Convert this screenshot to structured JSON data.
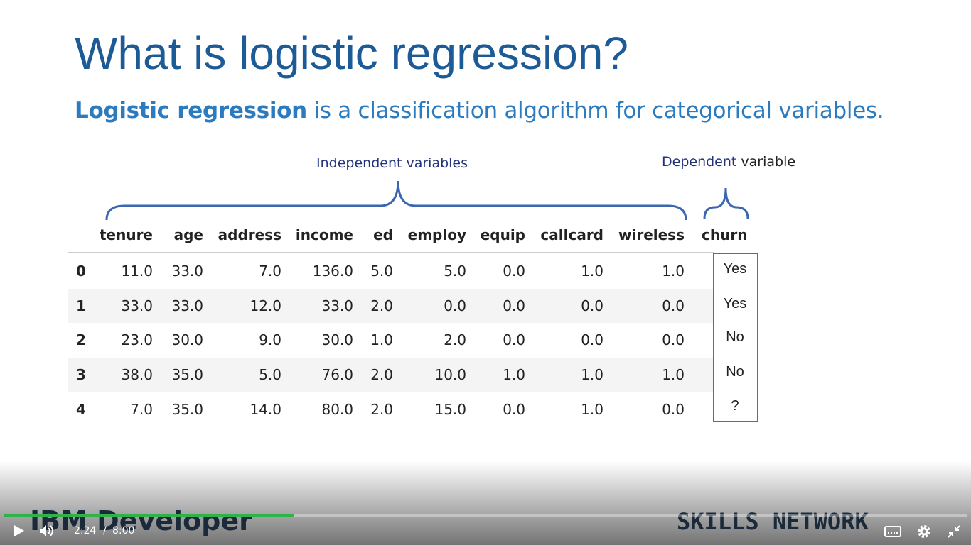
{
  "slide": {
    "title": "What is logistic regression?",
    "subtitle_bold": "Logistic regression",
    "subtitle_rest": "is a classification algorithm for categorical variables.",
    "independent_label": "Independent variables",
    "dependent_label_a": "Dependent",
    "dependent_label_b": "variable",
    "table": {
      "headers": [
        "tenure",
        "age",
        "address",
        "income",
        "ed",
        "employ",
        "equip",
        "callcard",
        "wireless",
        "churn"
      ],
      "rows": [
        [
          "0",
          "11.0",
          "33.0",
          "7.0",
          "136.0",
          "5.0",
          "5.0",
          "0.0",
          "1.0",
          "1.0",
          "Yes"
        ],
        [
          "1",
          "33.0",
          "33.0",
          "12.0",
          "33.0",
          "2.0",
          "0.0",
          "0.0",
          "0.0",
          "0.0",
          "Yes"
        ],
        [
          "2",
          "23.0",
          "30.0",
          "9.0",
          "30.0",
          "1.0",
          "2.0",
          "0.0",
          "0.0",
          "0.0",
          "No"
        ],
        [
          "3",
          "38.0",
          "35.0",
          "5.0",
          "76.0",
          "2.0",
          "10.0",
          "1.0",
          "1.0",
          "1.0",
          "No"
        ],
        [
          "4",
          "7.0",
          "35.0",
          "14.0",
          "80.0",
          "2.0",
          "15.0",
          "0.0",
          "1.0",
          "0.0",
          "?"
        ]
      ]
    },
    "brand_left": "IBM Developer",
    "brand_right": "SKILLS NETWORK"
  },
  "player": {
    "current_time": "2:24",
    "separator": "/",
    "duration": "8:00"
  }
}
